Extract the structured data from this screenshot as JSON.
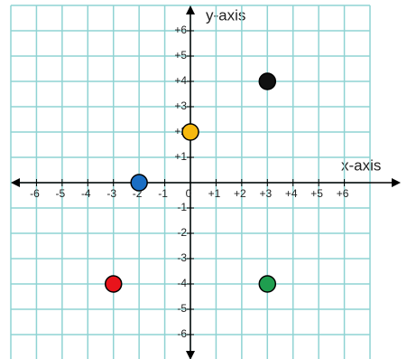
{
  "chart_data": {
    "type": "scatter",
    "x_axis_label": "x-axis",
    "y_axis_label": "y-axis",
    "x": [
      3,
      0,
      -2,
      -3,
      3
    ],
    "values": [
      4,
      2,
      0,
      -4,
      -4
    ],
    "colors": [
      "#111111",
      "#f7b90f",
      "#1a6ec4",
      "#e8141b",
      "#1f9e4f"
    ],
    "xlim": [
      -7,
      7
    ],
    "ylim": [
      -7,
      7
    ],
    "xticks": [
      -6,
      -5,
      -4,
      -3,
      -2,
      -1,
      0,
      {
        "value": 1,
        "label": "+1"
      },
      {
        "value": 2,
        "label": "+2"
      },
      {
        "value": 3,
        "label": "+3"
      },
      {
        "value": 4,
        "label": "+4"
      },
      {
        "value": 5,
        "label": "+5"
      },
      {
        "value": 6,
        "label": "+6"
      }
    ],
    "yticks": [
      {
        "value": 6,
        "label": "+6"
      },
      {
        "value": 5,
        "label": "+5"
      },
      {
        "value": 4,
        "label": "+4"
      },
      {
        "value": 3,
        "label": "+3"
      },
      {
        "value": 2,
        "label": "+2"
      },
      {
        "value": 1,
        "label": "+1"
      },
      -1,
      -2,
      -3,
      -4,
      -5,
      -6
    ],
    "grid": true,
    "grid_color": "#8fd3d3"
  }
}
